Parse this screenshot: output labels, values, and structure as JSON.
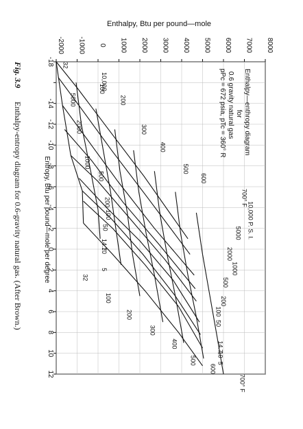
{
  "chart_data": {
    "type": "line",
    "title_lines": [
      "Enthalpy—enthropy diagram",
      "for",
      "0.6 gravity natural gas",
      "pPc = 672 psia, pTc = 360° R"
    ],
    "ylabel": "Enthalpy, Btu per pound—mole",
    "xlabel": "Entropy, Btu per pound—mole per degree",
    "caption_fig": "Fig. 3.9",
    "caption_text": "Enthalpy-entropy diagram for 0.6-gravity natural gas. (After Brown.)",
    "y_ticks": [
      -2000,
      -1000,
      0,
      1000,
      2000,
      3000,
      4000,
      5000,
      6000,
      7000,
      8000
    ],
    "y_tick_labels": [
      "-2000",
      "-1000",
      "0",
      "1000",
      "2000",
      "3000",
      "4000",
      "5000",
      "6000",
      "7000",
      "8000"
    ],
    "x_ticks": [
      -18,
      -16,
      -14,
      -12,
      -10,
      -8,
      -6,
      -4,
      -2,
      0,
      2,
      4,
      6,
      8,
      10,
      12
    ],
    "x_tick_labels": [
      "-18",
      "",
      "-14",
      "-12",
      "-10",
      "-8",
      "-6",
      "-4",
      "-2",
      "0",
      "2",
      "4",
      "6",
      "8",
      "10",
      "12"
    ],
    "ylim": [
      -2000,
      8000
    ],
    "xlim": [
      -18,
      12
    ],
    "isobars": [
      {
        "label": "14.7",
        "points": [
          [
            -2.5,
            -700
          ],
          [
            0.5,
            700
          ],
          [
            4,
            2250
          ],
          [
            8,
            3850
          ],
          [
            11.2,
            5000
          ]
        ]
      },
      {
        "label": "50",
        "points": [
          [
            -4.6,
            -700
          ],
          [
            -2.0,
            700
          ],
          [
            1.5,
            2250
          ],
          [
            5.5,
            3850
          ],
          [
            9.5,
            5000
          ]
        ]
      },
      {
        "label": "100",
        "points": [
          [
            -5.6,
            -750
          ],
          [
            -3.0,
            600
          ],
          [
            0.5,
            2150
          ],
          [
            4.5,
            3700
          ],
          [
            8.2,
            4900
          ]
        ]
      },
      {
        "label": "200",
        "points": [
          [
            -6.8,
            -900
          ],
          [
            -4.0,
            400
          ],
          [
            -0.8,
            2000
          ],
          [
            3.0,
            3600
          ],
          [
            7.0,
            4850
          ]
        ]
      },
      {
        "label": "500",
        "points": [
          [
            -9.0,
            -1300
          ],
          [
            -6.5,
            0
          ],
          [
            -3.0,
            1500
          ],
          [
            1.0,
            3200
          ],
          [
            5.0,
            4700
          ]
        ]
      },
      {
        "label": "1000",
        "points": [
          [
            -11.5,
            -1600
          ],
          [
            -8.5,
            -300
          ],
          [
            -4.5,
            1200
          ],
          [
            -0.5,
            2900
          ],
          [
            3.8,
            4650
          ]
        ]
      },
      {
        "label": "2000",
        "points": [
          [
            -13.8,
            -1700
          ],
          [
            -10.5,
            -500
          ],
          [
            -6.5,
            950
          ],
          [
            -2.0,
            2700
          ],
          [
            2.5,
            4600
          ]
        ]
      },
      {
        "label": "5000",
        "points": [
          [
            -16.5,
            -1900
          ],
          [
            -13.5,
            -800
          ],
          [
            -9.5,
            650
          ],
          [
            -5.0,
            2350
          ],
          [
            0.5,
            4400
          ]
        ]
      },
      {
        "label": "10,000",
        "points": [
          [
            -18.0,
            -2000
          ],
          [
            -15.5,
            -1000
          ],
          [
            -11.5,
            500
          ],
          [
            -7.0,
            2200
          ],
          [
            -1.0,
            4300
          ]
        ]
      }
    ],
    "isotherms": [
      {
        "label": "32",
        "points": [
          [
            -18.0,
            -2000
          ],
          [
            -13.8,
            -1700
          ],
          [
            -9.0,
            -1300
          ],
          [
            -5.6,
            -750
          ],
          [
            -2.5,
            -700
          ]
        ]
      },
      {
        "label": "100",
        "points": [
          [
            -16.0,
            -1050
          ],
          [
            -12.0,
            -800
          ],
          [
            -7.5,
            -350
          ],
          [
            -3.8,
            0
          ],
          [
            -1.0,
            100
          ]
        ]
      },
      {
        "label": "200",
        "points": [
          [
            -13.5,
            -100
          ],
          [
            -9.5,
            250
          ],
          [
            -5.5,
            600
          ],
          [
            -2.0,
            850
          ],
          [
            1.5,
            1100
          ]
        ]
      },
      {
        "label": "300",
        "points": [
          [
            -11.5,
            800
          ],
          [
            -7.5,
            1050
          ],
          [
            -3.5,
            1400
          ],
          [
            0.5,
            1650
          ],
          [
            4.5,
            2000
          ]
        ]
      },
      {
        "label": "400",
        "points": [
          [
            -9.5,
            1700
          ],
          [
            -5.5,
            1950
          ],
          [
            -1.5,
            2300
          ],
          [
            2.5,
            2700
          ],
          [
            7.0,
            3100
          ]
        ]
      },
      {
        "label": "500",
        "points": [
          [
            -7.5,
            2700
          ],
          [
            -3.5,
            2950
          ],
          [
            0.5,
            3300
          ],
          [
            4.5,
            3700
          ],
          [
            9.0,
            4100
          ]
        ]
      },
      {
        "label": "600",
        "points": [
          [
            -5.5,
            3700
          ],
          [
            -1.5,
            3950
          ],
          [
            2.5,
            4300
          ],
          [
            6.5,
            4700
          ],
          [
            10.5,
            5050
          ]
        ]
      },
      {
        "label": "700° F",
        "points": [
          [
            -3.5,
            4700
          ],
          [
            0.5,
            5000
          ],
          [
            4.5,
            5350
          ],
          [
            8.5,
            5700
          ],
          [
            12.0,
            6000
          ]
        ]
      }
    ],
    "isobar_labels_right": [
      {
        "label": "10,000 P. S. I.",
        "x": -4.6,
        "y": 7200
      },
      {
        "label": "5000",
        "x": -2.2,
        "y": 6600
      },
      {
        "label": "2000",
        "x": -0.2,
        "y": 6200
      },
      {
        "label": "1000",
        "x": 1.2,
        "y": 6450
      },
      {
        "label": "500",
        "x": 2.7,
        "y": 6000
      },
      {
        "label": "200",
        "x": 4.5,
        "y": 5900
      },
      {
        "label": "100",
        "x": 5.5,
        "y": 5650
      },
      {
        "label": "50",
        "x": 6.8,
        "y": 5650
      },
      {
        "label": "14.7",
        "x": 8.8,
        "y": 5750
      },
      {
        "label": "10",
        "x": 9.8,
        "y": 5750
      },
      {
        "label": "5",
        "x": 10.8,
        "y": 5750
      }
    ],
    "isotherm_labels_top": [
      {
        "label": "700° F",
        "x": -5.8,
        "y": 6900
      },
      {
        "label": "600",
        "x": -7.3,
        "y": 4950
      },
      {
        "label": "500",
        "x": -8.2,
        "y": 4100
      },
      {
        "label": "400",
        "x": -10.3,
        "y": 3000
      },
      {
        "label": "300",
        "x": -12.0,
        "y": 2100
      },
      {
        "label": "200",
        "x": -14.8,
        "y": 1100
      },
      {
        "label": "100",
        "x": -15.9,
        "y": 100
      },
      {
        "label": "32",
        "x": -18.0,
        "y": -1650
      }
    ],
    "isotherm_labels_bottom": [
      {
        "label": "32",
        "x": 2.4,
        "y": -700
      },
      {
        "label": "100",
        "x": 4.2,
        "y": 400
      },
      {
        "label": "200",
        "x": 5.8,
        "y": 1400
      },
      {
        "label": "300",
        "x": 7.3,
        "y": 2500
      },
      {
        "label": "400",
        "x": 8.6,
        "y": 3550
      },
      {
        "label": "500",
        "x": 10.2,
        "y": 4450
      },
      {
        "label": "600",
        "x": 11.0,
        "y": 5400
      },
      {
        "label": "700° F",
        "x": 12.0,
        "y": 6800
      }
    ],
    "isobar_labels_left": [
      {
        "label": "10,000",
        "x": -17.0,
        "y": 200
      },
      {
        "label": "5000",
        "x": -15.0,
        "y": -1300
      },
      {
        "label": "2000",
        "x": -12.4,
        "y": -1000
      },
      {
        "label": "1000",
        "x": -9.0,
        "y": -600
      },
      {
        "label": "500",
        "x": -7.5,
        "y": 50
      },
      {
        "label": "200",
        "x": -5.0,
        "y": 350
      },
      {
        "label": "100",
        "x": -3.8,
        "y": 400
      },
      {
        "label": "50",
        "x": -2.4,
        "y": 250
      },
      {
        "label": "14.7",
        "x": -1.0,
        "y": 200
      },
      {
        "label": "10",
        "x": -0.2,
        "y": 200
      },
      {
        "label": "5",
        "x": 1.8,
        "y": 200
      }
    ],
    "grid": true
  }
}
